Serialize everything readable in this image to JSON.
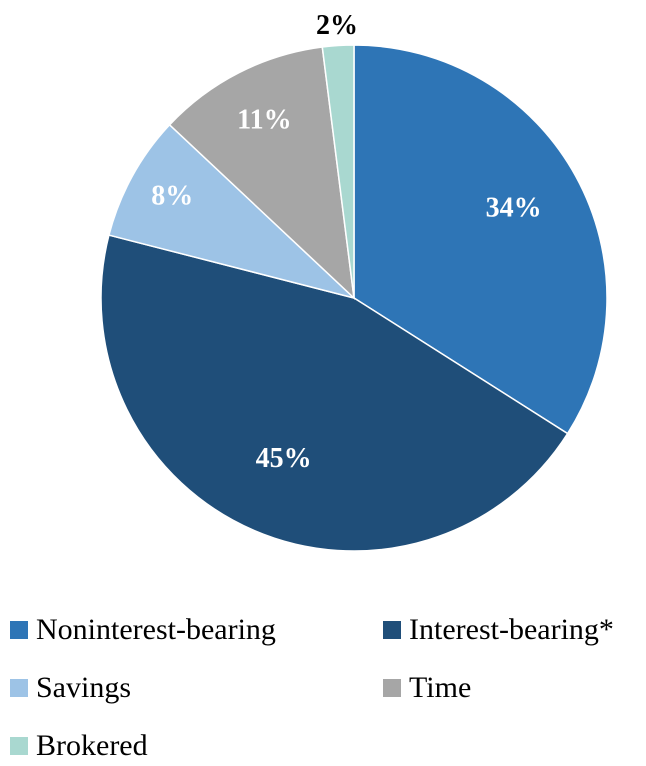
{
  "chart_data": {
    "type": "pie",
    "title": "",
    "start_angle_deg": 0,
    "direction": "clockwise",
    "slices": [
      {
        "name": "Noninterest-bearing",
        "value": 34,
        "label": "34%",
        "color": "#2E75B6",
        "label_color": "#FFFFFF"
      },
      {
        "name": "Interest-bearing*",
        "value": 45,
        "label": "45%",
        "color": "#1F4E79",
        "label_color": "#FFFFFF"
      },
      {
        "name": "Savings",
        "value": 8,
        "label": "8%",
        "color": "#9DC3E6",
        "label_color": "#FFFFFF"
      },
      {
        "name": "Time",
        "value": 11,
        "label": "11%",
        "color": "#A6A6A6",
        "label_color": "#FFFFFF"
      },
      {
        "name": "Brokered",
        "value": 2,
        "label": "2%",
        "color": "#A9D8D0",
        "label_color": "#000000"
      }
    ],
    "legend_position": "bottom"
  },
  "legend": [
    {
      "label": "Noninterest-bearing",
      "color": "#2E75B6"
    },
    {
      "label": "Interest-bearing*",
      "color": "#1F4E79"
    },
    {
      "label": "Savings",
      "color": "#9DC3E6"
    },
    {
      "label": "Time",
      "color": "#A6A6A6"
    },
    {
      "label": "Brokered",
      "color": "#A9D8D0"
    }
  ]
}
